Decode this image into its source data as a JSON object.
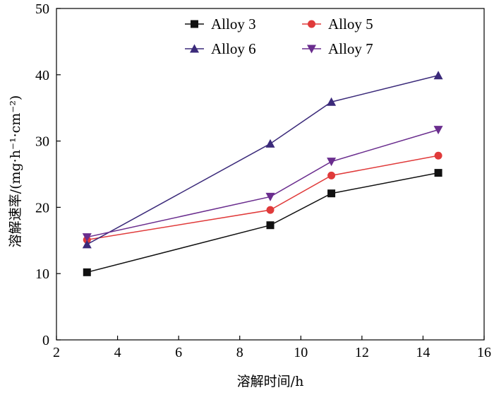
{
  "chart_data": {
    "type": "line",
    "title": "",
    "xlabel": "溶解时间/h",
    "ylabel": "溶解速率/(mg·h⁻¹·cm⁻²)",
    "xlim": [
      2,
      16
    ],
    "ylim": [
      0,
      50
    ],
    "xticks": [
      2,
      4,
      6,
      8,
      10,
      12,
      14,
      16
    ],
    "yticks": [
      0,
      10,
      20,
      30,
      40,
      50
    ],
    "x": [
      3,
      9,
      11,
      14.5
    ],
    "grid": false,
    "legend_position": "top",
    "series": [
      {
        "name": "Alloy 3",
        "values": [
          10.2,
          17.3,
          22.1,
          25.2
        ],
        "color": "#111111",
        "marker": "square"
      },
      {
        "name": "Alloy 5",
        "values": [
          15.1,
          19.6,
          24.8,
          27.8
        ],
        "color": "#e03a3a",
        "marker": "circle"
      },
      {
        "name": "Alloy 6",
        "values": [
          14.4,
          29.6,
          35.9,
          39.9
        ],
        "color": "#3b2a7a",
        "marker": "triangle-up"
      },
      {
        "name": "Alloy 7",
        "values": [
          15.5,
          21.6,
          26.9,
          31.7
        ],
        "color": "#6a2d8e",
        "marker": "triangle-down"
      }
    ]
  }
}
